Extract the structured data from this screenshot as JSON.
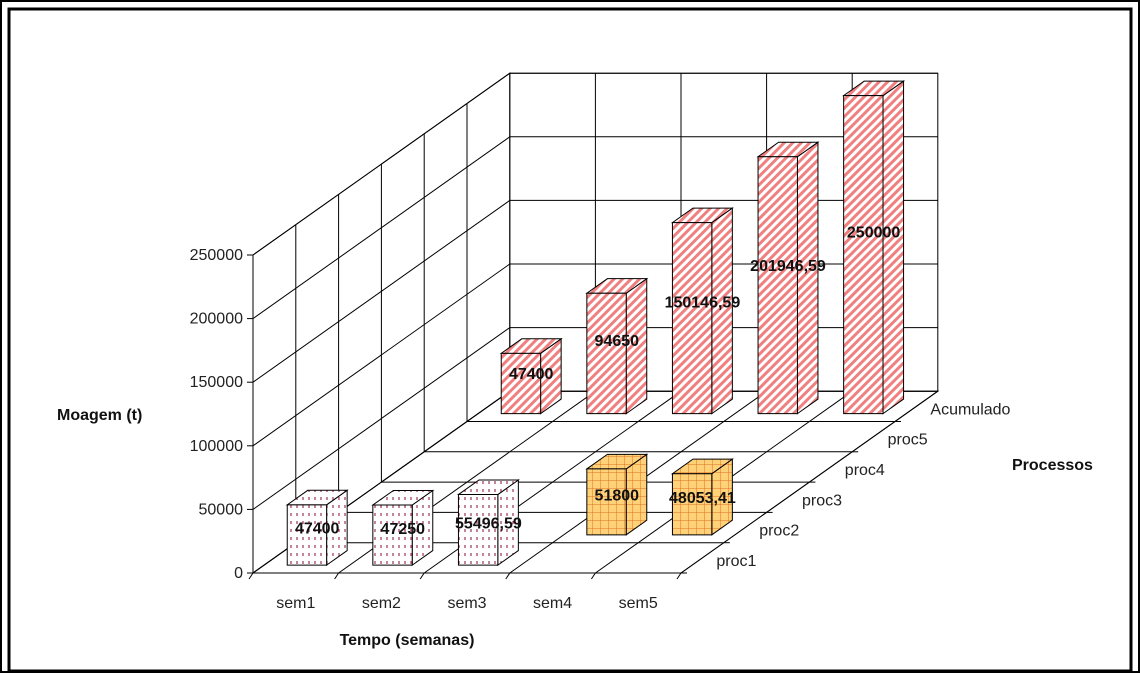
{
  "chart_data": {
    "type": "bar",
    "style": "3d-clustered-depth",
    "categories": [
      "sem1",
      "sem2",
      "sem3",
      "sem4",
      "sem5"
    ],
    "depth_categories": [
      "proc1",
      "proc2",
      "proc3",
      "proc4",
      "proc5",
      "Acumulado"
    ],
    "xlabel": "Tempo (semanas)",
    "ylabel": "Moagem (t)",
    "zlabel": "Processos",
    "ylim": [
      0,
      250000
    ],
    "yticks": [
      "0",
      "50000",
      "100000",
      "150000",
      "200000",
      "250000"
    ],
    "grid": true,
    "series": [
      {
        "name": "proc1",
        "color": "#f4c6d8",
        "values": [
          47400,
          47250,
          55496.59,
          null,
          null
        ],
        "labels": [
          "47400",
          "47250",
          "55496,59",
          "",
          ""
        ]
      },
      {
        "name": "proc2",
        "color": "#ffd27a",
        "values": [
          null,
          null,
          null,
          51800,
          48053.41
        ],
        "labels": [
          "",
          "",
          "",
          "51800",
          "48053,41"
        ]
      },
      {
        "name": "Acumulado",
        "color": "#f08080",
        "values": [
          47400,
          94650,
          150146.59,
          201946.59,
          250000
        ],
        "labels": [
          "47400",
          "94650",
          "150146,59",
          "201946,59",
          "250000"
        ]
      }
    ]
  }
}
